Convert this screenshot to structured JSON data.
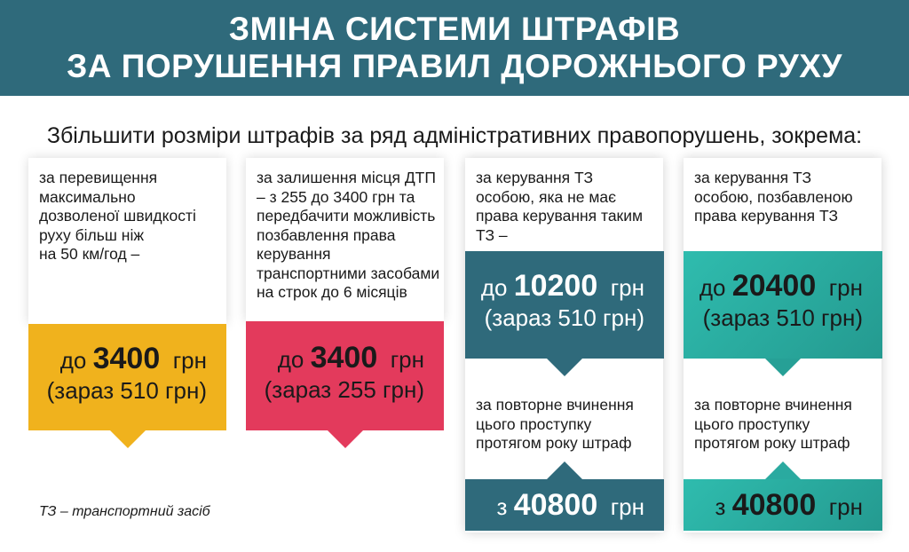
{
  "title": {
    "line1": "ЗМІНА СИСТЕМИ ШТРАФІВ",
    "line2": "ЗА ПОРУШЕННЯ ПРАВИЛ ДОРОЖНЬОГО РУХУ"
  },
  "subtitle": "Збільшити розміри штрафів за ряд адміністративних правопорушень, зокрема:",
  "colors": {
    "header": "#2f6a7b",
    "yellow": "#f0b21d",
    "pink": "#e33a5c",
    "dark_teal": "#2f6a7b",
    "teal": "#2aaaa0"
  },
  "cards": [
    {
      "desc": "за перевищення\nмаксимально\nдозволеної швидкості\nруху більш ніж\nна 50 км/год –",
      "prefix": "до",
      "amount": "3400",
      "unit": "грн",
      "now": "(зараз 510 грн)"
    },
    {
      "desc": "за залишення місця ДТП\n– з 255 до 3400 грн та\nпередбачити можливість\nпозбавлення права\nкерування\nтранспортними засобами\nна строк до 6 місяців",
      "prefix": "до",
      "amount": "3400",
      "unit": "грн",
      "now": "(зараз 255 грн)"
    },
    {
      "desc": "за керування ТЗ\nособою, яка не має\nправа керування таким\nТЗ –",
      "prefix": "до",
      "amount": "10200",
      "unit": "грн",
      "now": "(зараз 510 грн)",
      "repeat_desc": "за повторне вчинення\nцього проступку\nпротягом року штраф",
      "repeat_prefix": "з",
      "repeat_amount": "40800",
      "repeat_unit": "грн"
    },
    {
      "desc": "за керування ТЗ\nособою, позбавленою\nправа керування ТЗ",
      "prefix": "до",
      "amount": "20400",
      "unit": "грн",
      "now": "(зараз 510 грн)",
      "repeat_desc": "за повторне вчинення\nцього проступку\nпротягом року штраф",
      "repeat_prefix": "з",
      "repeat_amount": "40800",
      "repeat_unit": "грн"
    }
  ],
  "footnote": "ТЗ – транспортний засіб"
}
